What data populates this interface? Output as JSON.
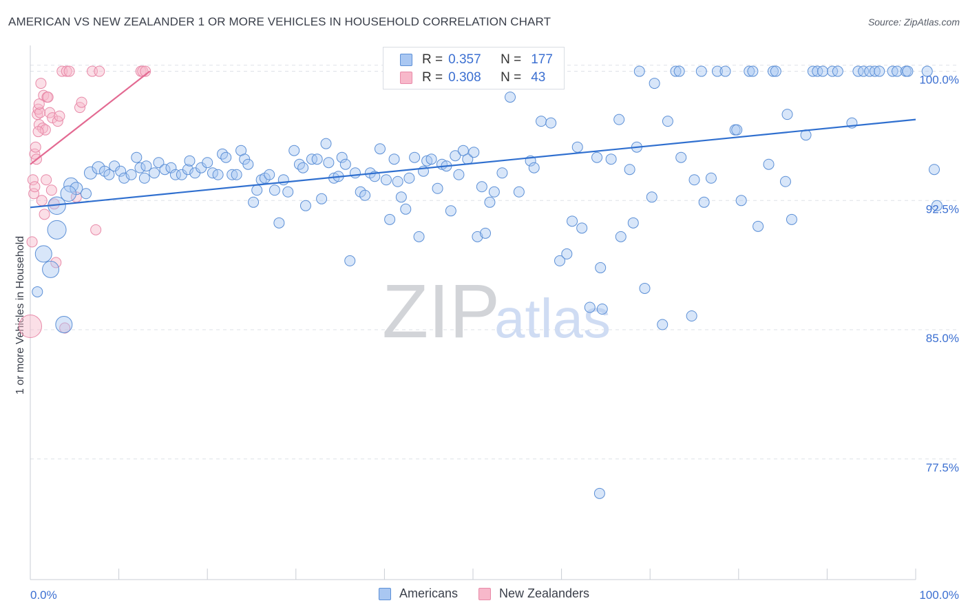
{
  "header": {
    "title": "AMERICAN VS NEW ZEALANDER 1 OR MORE VEHICLES IN HOUSEHOLD CORRELATION CHART",
    "source": "Source: ZipAtlas.com"
  },
  "watermark": {
    "zip": "ZIP",
    "atlas": "atlas"
  },
  "legend_top": {
    "americans": {
      "r_label": "R =",
      "r_value": "0.357",
      "n_label": "N =",
      "n_value": "177"
    },
    "new_zealanders": {
      "r_label": "R =",
      "r_value": "0.308",
      "n_label": "N =",
      "n_value": "43"
    }
  },
  "legend_bottom": {
    "americans": "Americans",
    "new_zealanders": "New Zealanders"
  },
  "colors": {
    "americans_fill": "#a9c7f2",
    "americans_stroke": "#5b8fd6",
    "americans_line": "#2f6fcf",
    "nz_fill": "#f7b8ca",
    "nz_stroke": "#e889a8",
    "nz_line": "#e36a92",
    "axis_text": "#3b6fd1",
    "grid": "#dde1e7"
  },
  "chart_data": {
    "type": "scatter",
    "title": "AMERICAN VS NEW ZEALANDER 1 OR MORE VEHICLES IN HOUSEHOLD CORRELATION CHART",
    "xlabel": "",
    "ylabel": "1 or more Vehicles in Household",
    "xlim": [
      0,
      100
    ],
    "ylim": [
      70.5,
      101.5
    ],
    "x_tick_labels": [
      {
        "value": 0,
        "label": "0.0%"
      },
      {
        "value": 100,
        "label": "100.0%"
      }
    ],
    "y_tick_labels": [
      {
        "value": 100.0,
        "label": "100.0%"
      },
      {
        "value": 92.5,
        "label": "92.5%"
      },
      {
        "value": 85.0,
        "label": "85.0%"
      },
      {
        "value": 77.5,
        "label": "77.5%"
      }
    ],
    "series": [
      {
        "name": "Americans",
        "r": 0.357,
        "n": 177,
        "trend": {
          "x": [
            0,
            100
          ],
          "y": [
            92.1,
            97.2
          ]
        },
        "points": [
          [
            0.8,
            87.2,
            1
          ],
          [
            1.5,
            89.4,
            1.6
          ],
          [
            2.3,
            88.5,
            1.6
          ],
          [
            3.0,
            92.2,
            1.7
          ],
          [
            3.0,
            90.8,
            1.8
          ],
          [
            3.8,
            85.3,
            1.6
          ],
          [
            4.6,
            93.4,
            1.4
          ],
          [
            5.2,
            93.2,
            1.2
          ],
          [
            4.3,
            92.9,
            1.5
          ],
          [
            6.3,
            92.9,
            1
          ],
          [
            6.8,
            94.1,
            1.2
          ],
          [
            7.7,
            94.4,
            1.2
          ],
          [
            8.4,
            94.2,
            1
          ],
          [
            8.9,
            94.0,
            1
          ],
          [
            9.5,
            94.5,
            1
          ],
          [
            10.2,
            94.2,
            1
          ],
          [
            10.6,
            93.8,
            1
          ],
          [
            11.4,
            94.0,
            1
          ],
          [
            12.0,
            95.0,
            1
          ],
          [
            12.4,
            94.4,
            1
          ],
          [
            12.9,
            93.8,
            1
          ],
          [
            13.1,
            94.5,
            1
          ],
          [
            14.0,
            94.1,
            1
          ],
          [
            14.5,
            94.7,
            1
          ],
          [
            15.2,
            94.3,
            1
          ],
          [
            15.9,
            94.4,
            1
          ],
          [
            16.4,
            94.0,
            1
          ],
          [
            17.1,
            94.0,
            1
          ],
          [
            17.8,
            94.3,
            1
          ],
          [
            18.0,
            94.8,
            1
          ],
          [
            18.6,
            94.1,
            1
          ],
          [
            19.3,
            94.4,
            1
          ],
          [
            20.0,
            94.7,
            1
          ],
          [
            20.6,
            94.1,
            1
          ],
          [
            21.2,
            94.0,
            1
          ],
          [
            21.7,
            95.2,
            1
          ],
          [
            22.1,
            95.0,
            1
          ],
          [
            22.8,
            94.0,
            1
          ],
          [
            23.3,
            94.0,
            1
          ],
          [
            23.8,
            95.4,
            1
          ],
          [
            24.2,
            94.9,
            1
          ],
          [
            24.6,
            94.6,
            1
          ],
          [
            25.2,
            92.4,
            1
          ],
          [
            25.6,
            93.1,
            1
          ],
          [
            26.1,
            93.7,
            1
          ],
          [
            26.5,
            93.8,
            1
          ],
          [
            27.0,
            94.0,
            1
          ],
          [
            27.6,
            93.1,
            1
          ],
          [
            28.1,
            91.2,
            1
          ],
          [
            28.6,
            93.7,
            1
          ],
          [
            29.1,
            93.0,
            1
          ],
          [
            29.8,
            95.4,
            1
          ],
          [
            30.4,
            94.6,
            1
          ],
          [
            30.8,
            94.4,
            1
          ],
          [
            31.1,
            92.2,
            1
          ],
          [
            31.8,
            94.9,
            1
          ],
          [
            32.4,
            94.9,
            1
          ],
          [
            32.9,
            92.6,
            1
          ],
          [
            33.4,
            95.8,
            1
          ],
          [
            33.7,
            94.7,
            1
          ],
          [
            34.3,
            93.8,
            1
          ],
          [
            34.8,
            93.9,
            1
          ],
          [
            35.2,
            95.0,
            1
          ],
          [
            35.6,
            94.6,
            1
          ],
          [
            36.1,
            89.0,
            1
          ],
          [
            36.7,
            94.1,
            1
          ],
          [
            37.3,
            93.0,
            1
          ],
          [
            37.8,
            92.8,
            1
          ],
          [
            38.4,
            94.1,
            1
          ],
          [
            38.9,
            93.9,
            1
          ],
          [
            39.5,
            95.5,
            1
          ],
          [
            40.2,
            93.7,
            1
          ],
          [
            40.6,
            91.4,
            1
          ],
          [
            41.1,
            94.9,
            1
          ],
          [
            41.5,
            93.6,
            1
          ],
          [
            41.9,
            92.7,
            1
          ],
          [
            42.4,
            92.0,
            1
          ],
          [
            42.8,
            93.8,
            1
          ],
          [
            43.4,
            95.0,
            1
          ],
          [
            43.9,
            90.4,
            1
          ],
          [
            44.4,
            94.2,
            1
          ],
          [
            44.8,
            94.8,
            1
          ],
          [
            45.3,
            94.9,
            1
          ],
          [
            46.0,
            93.2,
            1
          ],
          [
            46.5,
            94.6,
            1
          ],
          [
            47.0,
            94.5,
            1
          ],
          [
            47.5,
            91.9,
            1
          ],
          [
            48.0,
            95.1,
            1
          ],
          [
            48.4,
            94.0,
            1
          ],
          [
            48.9,
            95.4,
            1
          ],
          [
            49.4,
            94.9,
            1
          ],
          [
            50.1,
            95.3,
            1
          ],
          [
            50.5,
            90.4,
            1
          ],
          [
            51.0,
            93.3,
            1
          ],
          [
            51.4,
            90.6,
            1
          ],
          [
            51.9,
            92.4,
            1
          ],
          [
            52.4,
            93.0,
            1
          ],
          [
            53.3,
            94.1,
            1
          ],
          [
            54.0,
            99.5,
            1
          ],
          [
            54.2,
            98.5,
            1
          ],
          [
            55.2,
            93.0,
            1
          ],
          [
            56.5,
            94.8,
            1
          ],
          [
            56.9,
            94.4,
            1
          ],
          [
            57.7,
            97.1,
            1
          ],
          [
            58.8,
            97.0,
            1
          ],
          [
            59.8,
            89.0,
            1
          ],
          [
            60.6,
            89.4,
            1
          ],
          [
            61.2,
            91.3,
            1
          ],
          [
            61.8,
            95.6,
            1
          ],
          [
            62.3,
            90.9,
            1
          ],
          [
            63.2,
            86.3,
            1
          ],
          [
            64.0,
            95.0,
            1
          ],
          [
            64.4,
            88.6,
            1
          ],
          [
            64.6,
            86.2,
            1
          ],
          [
            65.6,
            94.9,
            1
          ],
          [
            66.5,
            97.2,
            1
          ],
          [
            66.7,
            90.4,
            1
          ],
          [
            67.7,
            94.3,
            1
          ],
          [
            68.1,
            91.2,
            1
          ],
          [
            68.5,
            95.6,
            1
          ],
          [
            68.8,
            100.0,
            1
          ],
          [
            69.4,
            87.4,
            1
          ],
          [
            70.2,
            92.7,
            1
          ],
          [
            70.5,
            99.3,
            1
          ],
          [
            71.4,
            85.3,
            1
          ],
          [
            72.0,
            97.1,
            1
          ],
          [
            72.9,
            100.0,
            1
          ],
          [
            73.3,
            100.0,
            1
          ],
          [
            73.5,
            95.0,
            1
          ],
          [
            74.7,
            85.8,
            1
          ],
          [
            75.0,
            93.7,
            1
          ],
          [
            75.8,
            100.0,
            1
          ],
          [
            76.1,
            92.4,
            1
          ],
          [
            76.9,
            93.8,
            1
          ],
          [
            77.6,
            100.0,
            1
          ],
          [
            78.5,
            100.0,
            1
          ],
          [
            79.6,
            96.6,
            1
          ],
          [
            79.8,
            96.6,
            1
          ],
          [
            80.3,
            92.5,
            1
          ],
          [
            81.2,
            100.0,
            1
          ],
          [
            81.6,
            100.0,
            1
          ],
          [
            82.2,
            91.0,
            1
          ],
          [
            83.4,
            94.6,
            1
          ],
          [
            83.9,
            100.0,
            1
          ],
          [
            84.2,
            100.0,
            1
          ],
          [
            85.3,
            93.6,
            1
          ],
          [
            85.5,
            97.5,
            1
          ],
          [
            86.0,
            91.4,
            1
          ],
          [
            87.6,
            96.3,
            1
          ],
          [
            88.4,
            100.0,
            1
          ],
          [
            88.9,
            100.0,
            1
          ],
          [
            89.5,
            100.0,
            1
          ],
          [
            90.6,
            100.0,
            1
          ],
          [
            91.2,
            100.0,
            1
          ],
          [
            92.8,
            97.0,
            1
          ],
          [
            93.5,
            100.0,
            1
          ],
          [
            94.1,
            100.0,
            1
          ],
          [
            94.8,
            100.0,
            1
          ],
          [
            95.4,
            100.0,
            1
          ],
          [
            95.9,
            100.0,
            1
          ],
          [
            97.4,
            100.0,
            1
          ],
          [
            97.9,
            100.0,
            1
          ],
          [
            98.9,
            100.0,
            1
          ],
          [
            99.1,
            100.0,
            1
          ],
          [
            101.3,
            100.0,
            1
          ],
          [
            102.1,
            94.3,
            1
          ],
          [
            102.4,
            92.2,
            1
          ],
          [
            64.3,
            75.5,
            1
          ]
        ]
      },
      {
        "name": "New Zealanders",
        "r": 0.308,
        "n": 43,
        "trend": {
          "x": [
            0,
            13.5
          ],
          "y": [
            94.6,
            100.0
          ]
        },
        "points": [
          [
            0.0,
            85.2,
            2.2
          ],
          [
            0.2,
            90.1,
            1
          ],
          [
            0.3,
            93.7,
            1
          ],
          [
            0.4,
            92.9,
            1
          ],
          [
            0.5,
            95.2,
            1
          ],
          [
            0.6,
            95.6,
            1
          ],
          [
            0.7,
            94.9,
            1
          ],
          [
            0.8,
            97.5,
            1
          ],
          [
            0.9,
            97.8,
            1
          ],
          [
            1.0,
            96.9,
            1
          ],
          [
            1.1,
            97.6,
            1
          ],
          [
            1.3,
            92.5,
            1
          ],
          [
            1.4,
            96.7,
            1
          ],
          [
            1.5,
            98.6,
            1
          ],
          [
            1.6,
            91.7,
            1
          ],
          [
            1.7,
            96.6,
            1
          ],
          [
            1.8,
            93.7,
            1
          ],
          [
            1.9,
            98.5,
            1
          ],
          [
            2.0,
            98.5,
            1
          ],
          [
            2.2,
            97.6,
            1
          ],
          [
            2.4,
            93.1,
            1
          ],
          [
            2.5,
            97.3,
            1
          ],
          [
            2.7,
            92.3,
            1
          ],
          [
            2.9,
            88.9,
            1
          ],
          [
            3.1,
            97.1,
            1
          ],
          [
            3.3,
            97.4,
            1
          ],
          [
            3.6,
            100.0,
            1
          ],
          [
            3.9,
            85.1,
            1
          ],
          [
            4.1,
            100.0,
            1
          ],
          [
            4.4,
            100.0,
            1
          ],
          [
            5.2,
            92.7,
            1
          ],
          [
            5.6,
            97.9,
            1
          ],
          [
            5.8,
            98.2,
            1
          ],
          [
            7.0,
            100.0,
            1
          ],
          [
            7.4,
            90.8,
            1
          ],
          [
            7.8,
            100.0,
            1
          ],
          [
            12.5,
            100.0,
            1
          ],
          [
            12.7,
            100.0,
            1
          ],
          [
            13.0,
            100.0,
            1
          ],
          [
            1.2,
            99.3,
            1
          ],
          [
            1.0,
            98.1,
            1
          ],
          [
            0.9,
            96.5,
            1
          ],
          [
            0.5,
            93.3,
            1
          ]
        ]
      }
    ]
  }
}
